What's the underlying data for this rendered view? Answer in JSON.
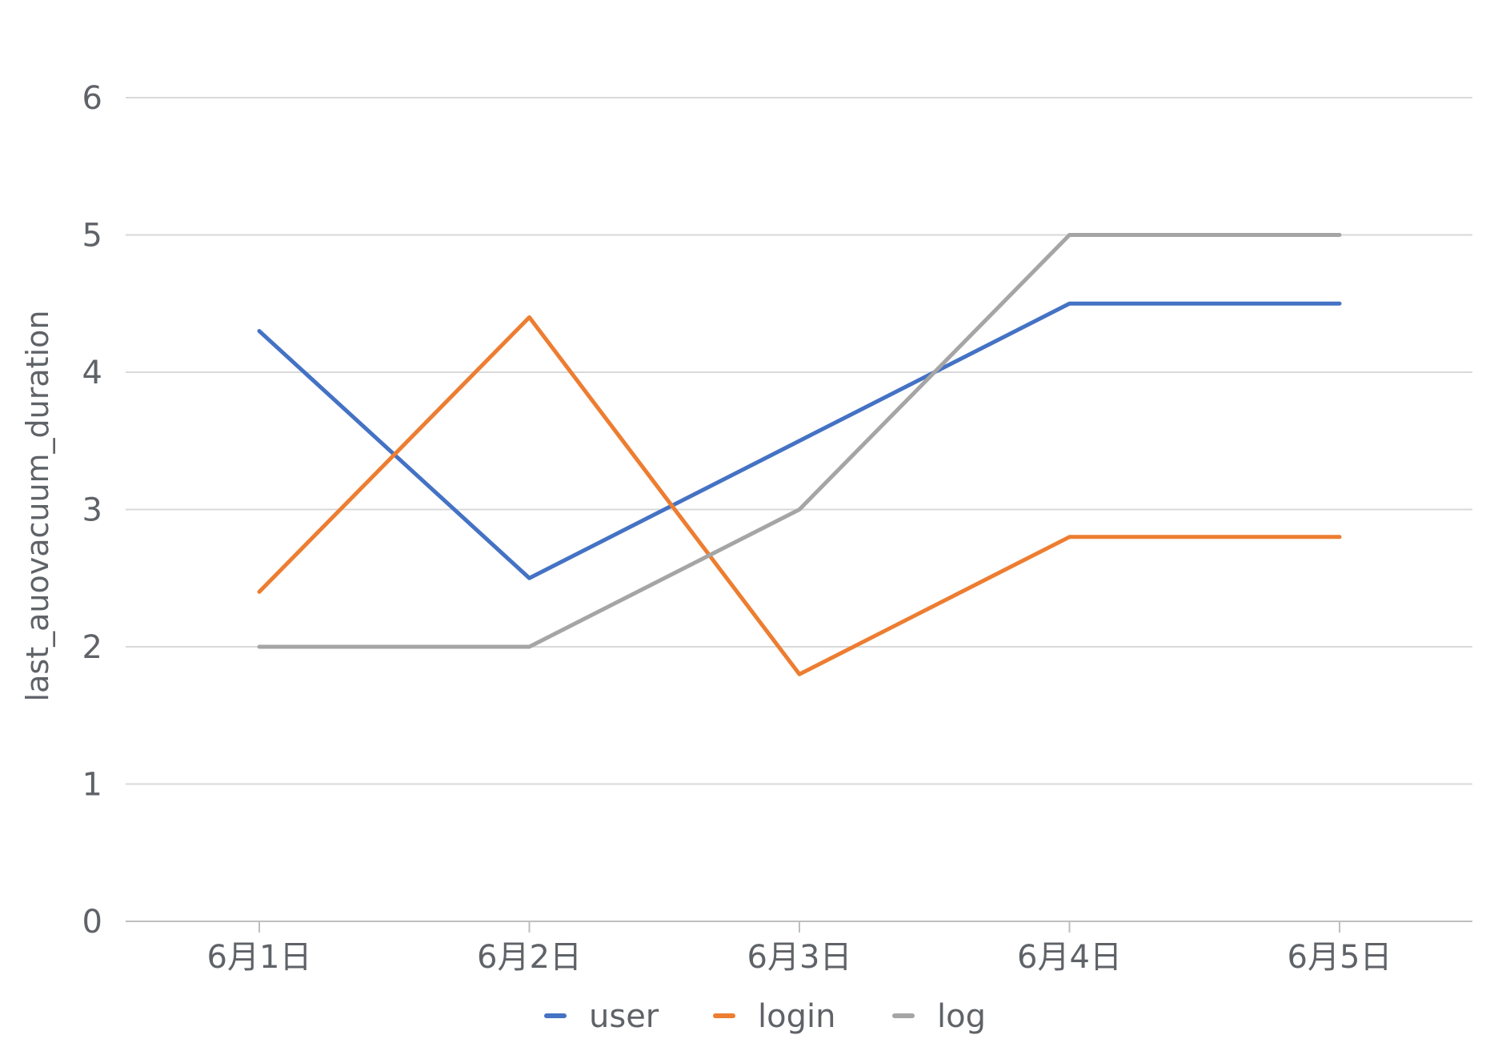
{
  "chart_data": {
    "type": "line",
    "title": "",
    "xlabel": "",
    "ylabel": "last_auovacuum_duration",
    "categories": [
      "6月1日",
      "6月2日",
      "6月3日",
      "6月4日",
      "6月5日"
    ],
    "ylim": [
      0,
      6
    ],
    "yticks": [
      0,
      1,
      2,
      3,
      4,
      5,
      6
    ],
    "grid": true,
    "legend_position": "bottom",
    "series": [
      {
        "name": "user",
        "color": "#4472c4",
        "values": [
          4.3,
          2.5,
          3.5,
          4.5,
          4.5
        ]
      },
      {
        "name": "login",
        "color": "#ed7d31",
        "values": [
          2.4,
          4.4,
          1.8,
          2.8,
          2.8
        ]
      },
      {
        "name": "log",
        "color": "#a5a5a5",
        "values": [
          2.0,
          2.0,
          3.0,
          5.0,
          5.0
        ]
      }
    ]
  }
}
